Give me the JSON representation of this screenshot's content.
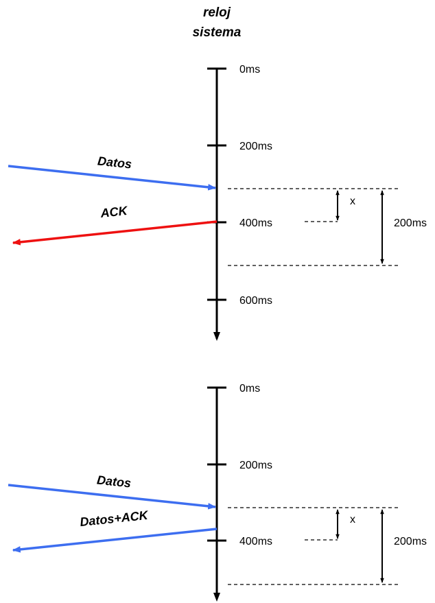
{
  "header": {
    "line1": "reloj",
    "line2": "sistema"
  },
  "colors": {
    "data_arrow": "#3d6ef0",
    "ack_arrow": "#ee1111",
    "axis": "#000000"
  },
  "timeline_top": {
    "ticks": [
      "0ms",
      "200ms",
      "400ms",
      "600ms"
    ],
    "arrow_in_label": "Datos",
    "arrow_out_label": "ACK",
    "small_gap_label": "x",
    "window_label": "200ms"
  },
  "timeline_bottom": {
    "ticks": [
      "0ms",
      "200ms",
      "400ms"
    ],
    "arrow_in_label": "Datos",
    "arrow_out_label": "Datos+ACK",
    "small_gap_label": "x",
    "window_label": "200ms"
  }
}
